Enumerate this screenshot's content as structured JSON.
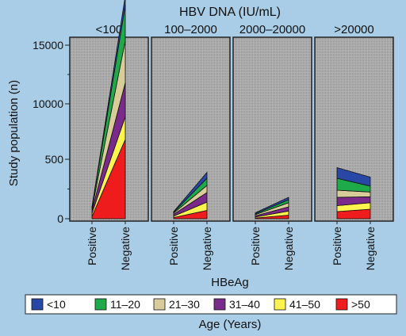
{
  "colors": {
    "background": "#a9cde6",
    "panel_fill": "#b9b9b9",
    "panel_hatch": "#8a8a8a",
    "lt10": "#2948a6",
    "11to20": "#1faa4a",
    "21to30": "#d8cc98",
    "31to40": "#7a2a8a",
    "41to50": "#fff34d",
    "gt50": "#ee1c1c"
  },
  "chart_data": {
    "type": "area",
    "title": "HBV DNA (IU/mL)",
    "xlabel": "HBeAg",
    "ylabel": "Study population (n)",
    "y_ticks": [
      "0",
      "500",
      "10000",
      "15000"
    ],
    "x_tick_labels": [
      "Positive",
      "Negative"
    ],
    "panels": [
      {
        "label": "<100",
        "categories": [
          "Positive",
          "Negative"
        ]
      },
      {
        "label": "100–2000",
        "categories": [
          "Positive",
          "Negative"
        ]
      },
      {
        "label": "2000–20000",
        "categories": [
          "Positive",
          "Negative"
        ]
      },
      {
        "label": ">20000",
        "categories": [
          "Positive",
          "Negative"
        ]
      }
    ],
    "legend_title": "Age (Years)",
    "legend_position": "bottom",
    "series": [
      {
        "name": ">50",
        "color_key": "gt50",
        "values": [
          [
            20,
            3900
          ],
          [
            10,
            70
          ],
          [
            6,
            30
          ],
          [
            60,
            80
          ]
        ]
      },
      {
        "name": "41–50",
        "color_key": "41to50",
        "values": [
          [
            25,
            3900
          ],
          [
            12,
            70
          ],
          [
            8,
            35
          ],
          [
            50,
            55
          ]
        ]
      },
      {
        "name": "31–40",
        "color_key": "31to40",
        "values": [
          [
            25,
            4000
          ],
          [
            15,
            80
          ],
          [
            10,
            35
          ],
          [
            70,
            50
          ]
        ]
      },
      {
        "name": "21–30",
        "color_key": "21to30",
        "values": [
          [
            15,
            3600
          ],
          [
            10,
            60
          ],
          [
            10,
            35
          ],
          [
            60,
            40
          ]
        ]
      },
      {
        "name": "11–20",
        "color_key": "11to20",
        "values": [
          [
            10,
            3000
          ],
          [
            8,
            60
          ],
          [
            8,
            25
          ],
          [
            100,
            50
          ]
        ]
      },
      {
        "name": "<10",
        "color_key": "lt10",
        "values": [
          [
            5,
            800
          ],
          [
            5,
            50
          ],
          [
            8,
            20
          ],
          [
            90,
            75
          ]
        ]
      }
    ]
  }
}
